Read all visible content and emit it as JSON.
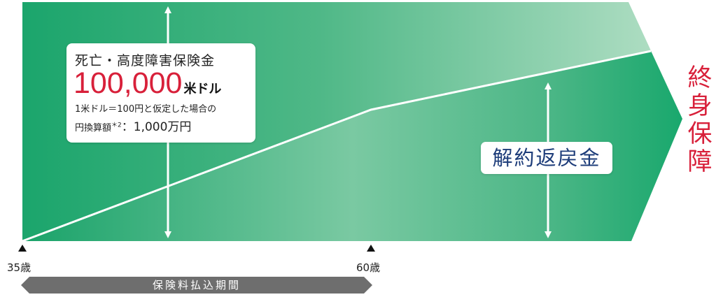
{
  "death_benefit": {
    "title": "死亡・高度障害保険金",
    "amount": "100,000",
    "unit": "米ドル",
    "note": "1米ドル＝100円と仮定した場合の",
    "yen_label": "円換算額",
    "footnote_mark": "＊2",
    "yen_amount": "：1,000万円"
  },
  "surrender_value": {
    "label": "解約返戻金"
  },
  "lifetime_coverage": {
    "chars": [
      "終",
      "身",
      "保",
      "障"
    ]
  },
  "ages": {
    "start": "35歳",
    "end": "60歳"
  },
  "payment_period": {
    "label": "保険料払込期間"
  },
  "colors": {
    "green_dark": "#1aa36a",
    "green_mid": "#5bbf91",
    "green_light": "#b3dfc4",
    "accent_red": "#d8203a",
    "navy": "#1e3d7a",
    "bar_gray": "#6e6e6e"
  }
}
